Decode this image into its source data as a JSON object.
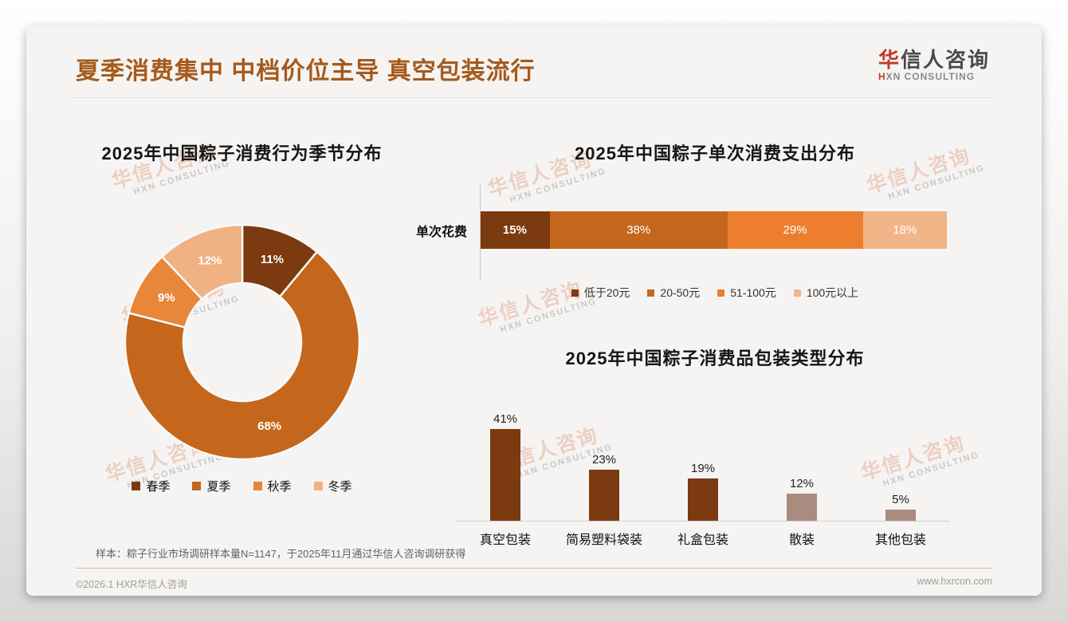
{
  "page": {
    "main_title": "夏季消费集中 中档价位主导 真空包装流行",
    "logo": {
      "cn_accent": "华",
      "cn_rest": "信人咨询",
      "en_accent": "H",
      "en_rest": "XN CONSULTING"
    },
    "watermark": {
      "line1": "华信人咨询",
      "line2": "HXN CONSULTING"
    },
    "footnote": "样本：粽子行业市场调研样本量N=1147，于2025年11月通过华信人咨询调研获得",
    "footer": {
      "left": "©2026.1 HXR华信人咨询",
      "right": "www.hxrcon.com"
    },
    "colors": {
      "accent_title": "#A55A1D",
      "logo_red": "#C03A2B",
      "card_bg": "#F5F4F2"
    }
  },
  "chart_data": [
    {
      "type": "pie",
      "subtype": "donut",
      "title": "2025年中国粽子消费行为季节分布",
      "categories": [
        "春季",
        "夏季",
        "秋季",
        "冬季"
      ],
      "values": [
        11,
        68,
        9,
        12
      ],
      "labels": [
        "11%",
        "68%",
        "9%",
        "12%"
      ],
      "colors": [
        "#7B3A10",
        "#C4671C",
        "#E8863A",
        "#F0B183"
      ],
      "start_angle_deg": -90,
      "direction": "clockwise",
      "legend_position": "bottom"
    },
    {
      "type": "bar",
      "subtype": "horizontal-stacked-100",
      "title": "2025年中国粽子单次消费支出分布",
      "row_label": "单次花费",
      "series": [
        {
          "name": "低于20元",
          "value": 15,
          "label": "15%",
          "color": "#7B3A10"
        },
        {
          "name": "20-50元",
          "value": 38,
          "label": "38%",
          "color": "#C4671C"
        },
        {
          "name": "51-100元",
          "value": 29,
          "label": "29%",
          "color": "#EC7E2E"
        },
        {
          "name": "100元以上",
          "value": 18,
          "label": "18%",
          "color": "#F2B588"
        }
      ],
      "legend_position": "bottom"
    },
    {
      "type": "bar",
      "subtype": "vertical",
      "title": "2025年中国粽子消费品包装类型分布",
      "categories": [
        "真空包装",
        "简易塑料袋装",
        "礼盒包装",
        "散装",
        "其他包装"
      ],
      "values": [
        41,
        23,
        19,
        12,
        5
      ],
      "labels": [
        "41%",
        "23%",
        "19%",
        "12%",
        "5%"
      ],
      "colors": [
        "#7B3A12",
        "#7B3A12",
        "#7B3A12",
        "#A98B80",
        "#A98B80"
      ],
      "ylim": [
        0,
        45
      ],
      "grid": false
    }
  ]
}
